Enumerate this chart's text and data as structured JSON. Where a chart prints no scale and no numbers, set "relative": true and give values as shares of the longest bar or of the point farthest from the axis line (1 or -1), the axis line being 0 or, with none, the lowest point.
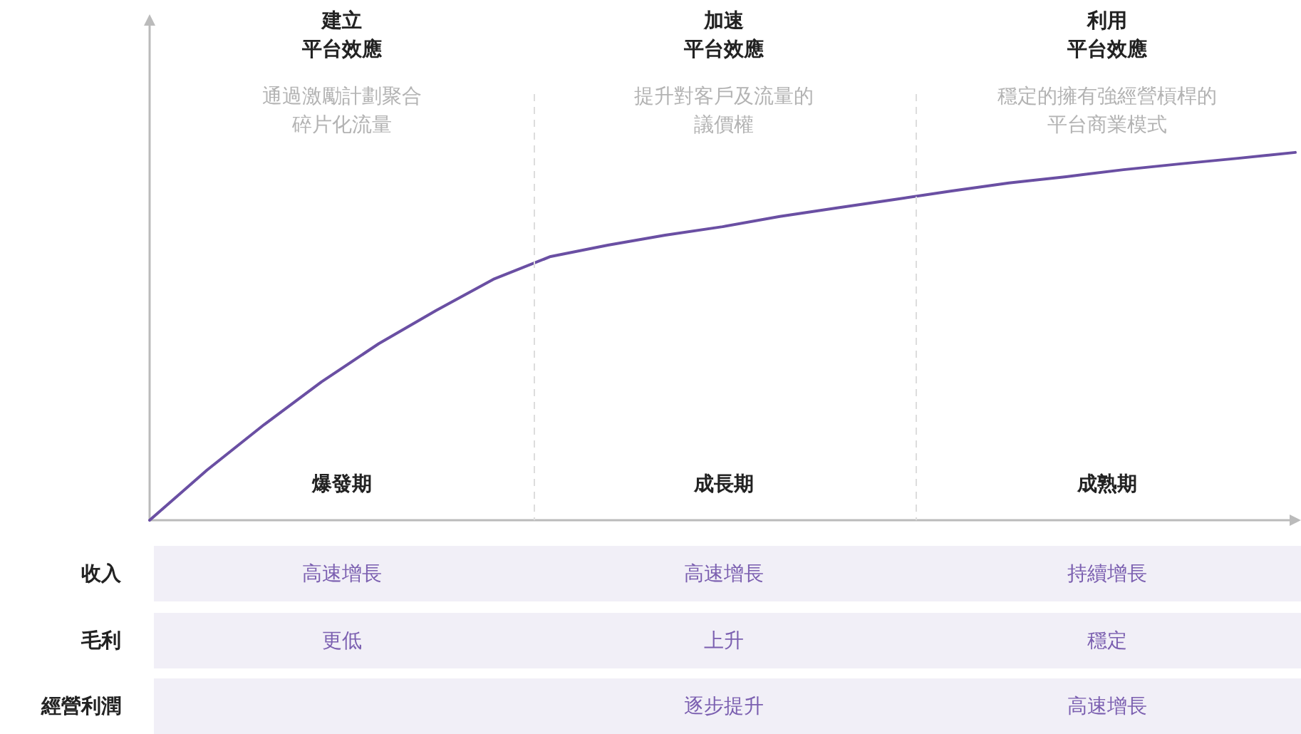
{
  "chart_data": {
    "type": "line",
    "relative": true,
    "grid": false,
    "marker": "none",
    "line_style": "solid",
    "categories": [
      null,
      null,
      null,
      null,
      null,
      null,
      null,
      null,
      null,
      null,
      null,
      null,
      null,
      null,
      null,
      null,
      null,
      null,
      null,
      null,
      null
    ],
    "series": [
      {
        "color": "#6a4fa3",
        "values": [
          0,
          0.136,
          0.26,
          0.376,
          0.48,
          0.57,
          0.655,
          0.717,
          0.748,
          0.775,
          0.798,
          0.826,
          0.849,
          0.872,
          0.895,
          0.917,
          0.934,
          0.953,
          0.969,
          0.984,
          1
        ]
      }
    ],
    "annotations": [
      "建立",
      "平台效應",
      "加速",
      "平台效應",
      "利用",
      "平台效應",
      "通過激勵計劃聚合碎片化流量",
      "提升對客戶及流量的議價權",
      "穩定的擁有強經營槓桿的平台商業模式",
      "爆發期",
      "成長期",
      "成熟期",
      "收入",
      "高速增長",
      "高速增長",
      "持續增長",
      "毛利",
      "更低",
      "上升",
      "穩定",
      "經營利潤",
      "逐步提升",
      "高速增長"
    ]
  }
}
